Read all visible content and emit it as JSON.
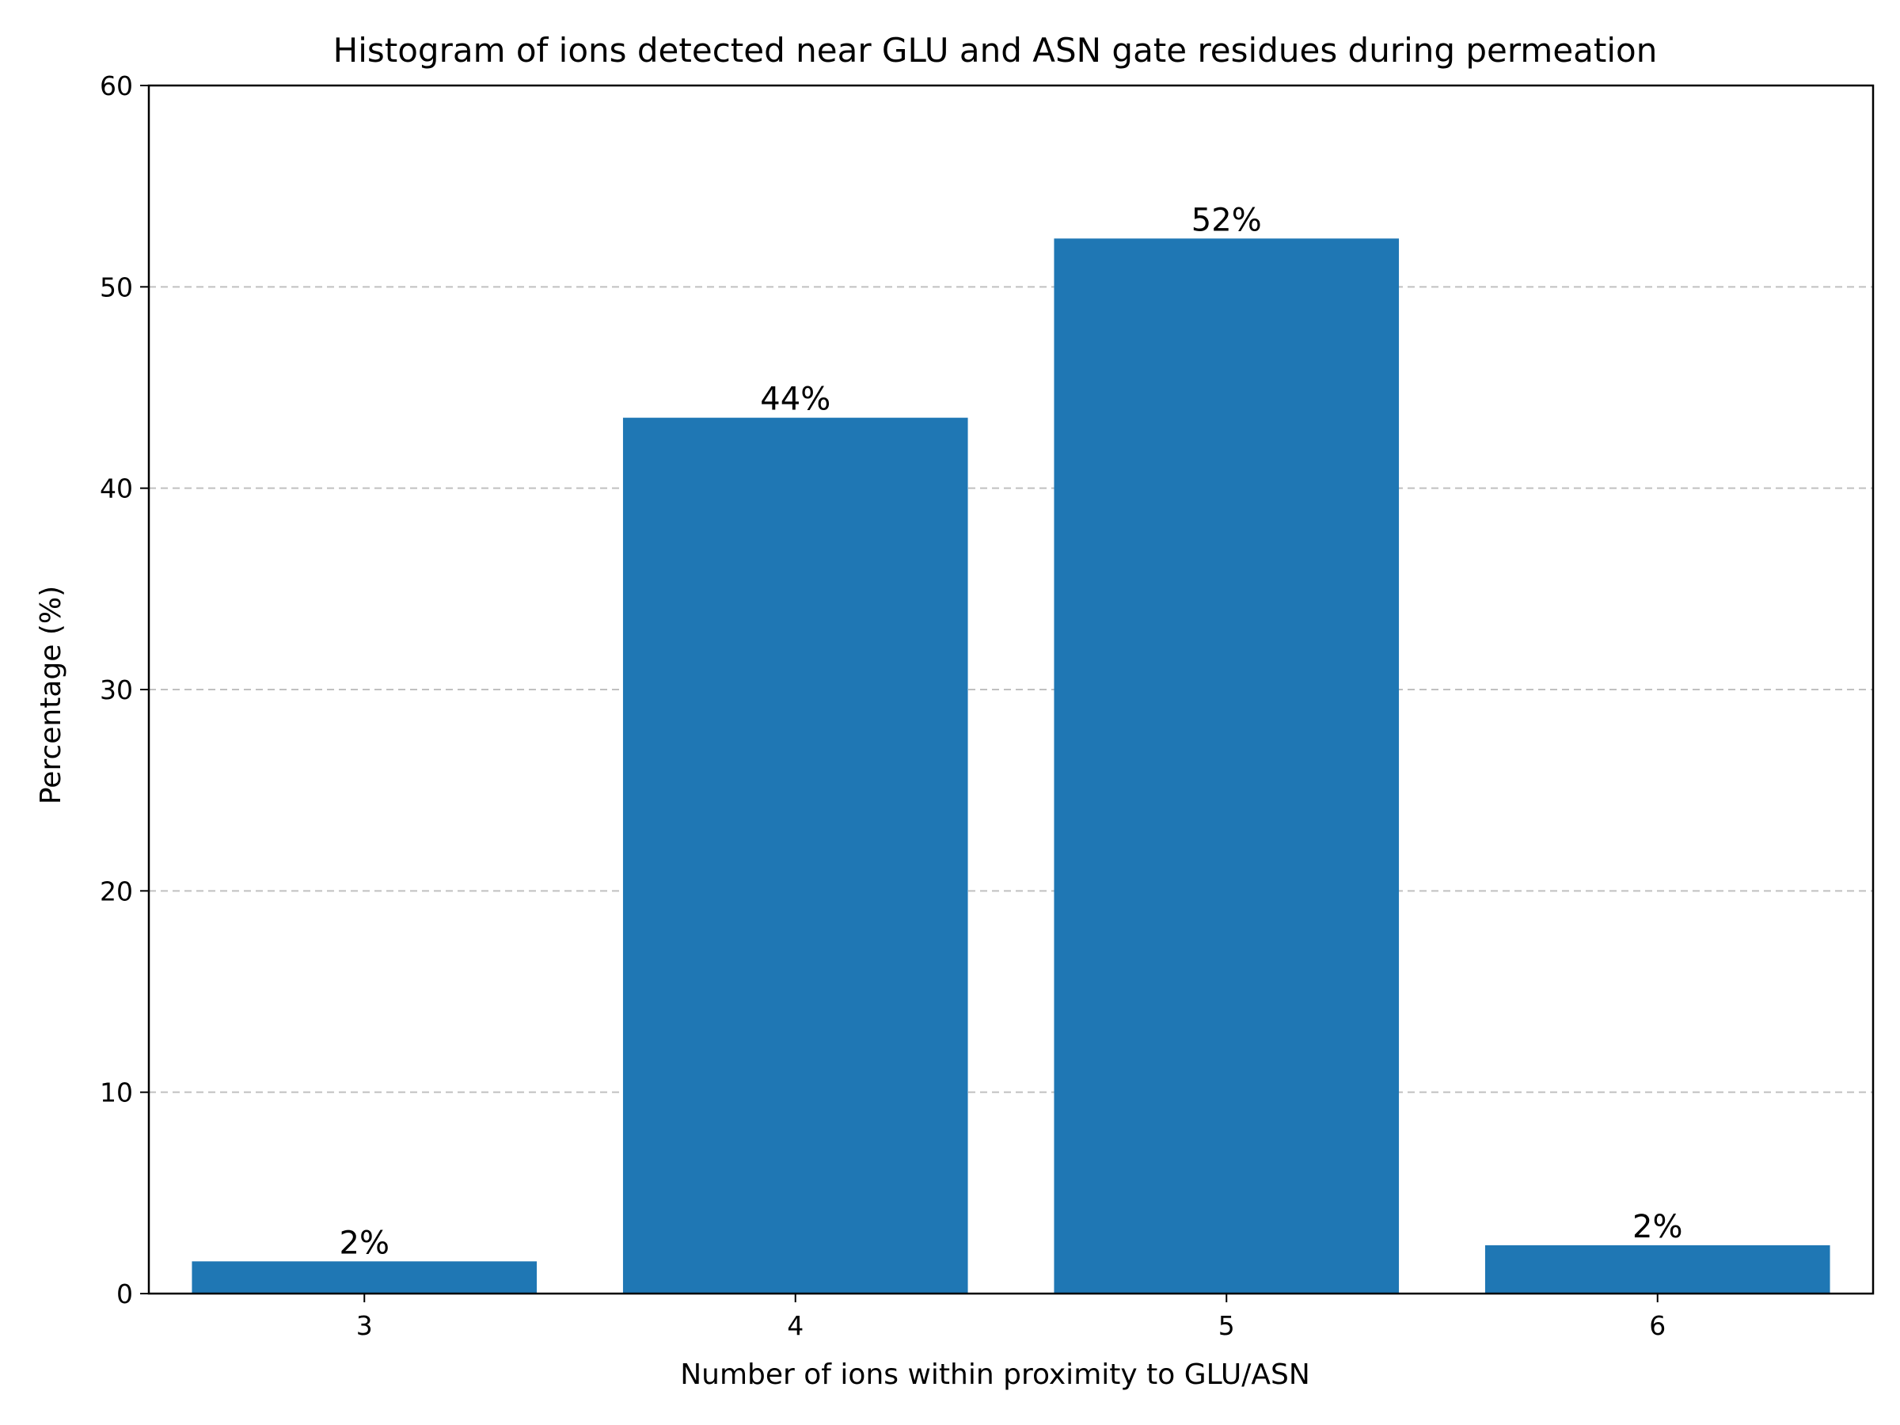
{
  "chart_data": {
    "type": "bar",
    "title": "Histogram of ions detected near GLU and ASN gate residues during permeation",
    "xlabel": "Number of ions within proximity to GLU/ASN",
    "ylabel": "Percentage (%)",
    "categories": [
      "3",
      "4",
      "5",
      "6"
    ],
    "values": [
      1.6,
      43.5,
      52.4,
      2.4
    ],
    "data_labels": [
      "2%",
      "44%",
      "52%",
      "2%"
    ],
    "ylim": [
      0,
      60
    ],
    "yticks": [
      "0",
      "10",
      "20",
      "30",
      "40",
      "50",
      "60"
    ],
    "grid": "y-dashed",
    "bar_color": "#1f77b4",
    "grid_color": "#c0c0c0"
  }
}
